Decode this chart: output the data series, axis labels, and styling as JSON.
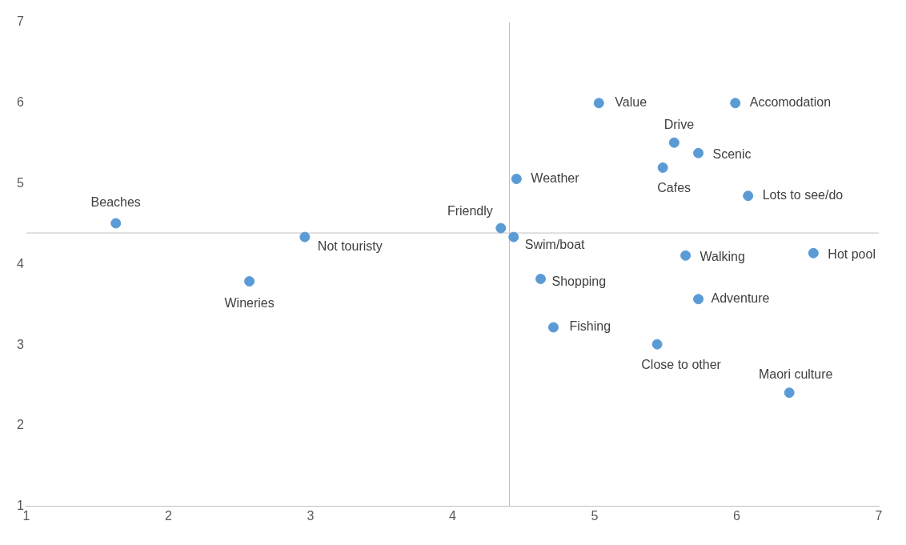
{
  "chart_data": {
    "type": "scatter",
    "x": [
      1.63,
      2.96,
      2.57,
      4.34,
      4.43,
      4.45,
      5.03,
      5.99,
      5.56,
      5.73,
      5.48,
      6.08,
      5.64,
      6.54,
      4.62,
      5.73,
      4.71,
      5.44,
      6.37
    ],
    "series": [
      {
        "color": "#5b9bd5",
        "values": [
          4.51,
          4.34,
          3.79,
          4.45,
          4.34,
          5.06,
          6.0,
          6.0,
          5.51,
          5.38,
          5.2,
          4.85,
          4.11,
          4.14,
          3.82,
          3.57,
          3.22,
          3.01,
          2.41
        ]
      }
    ],
    "annotations": [
      {
        "text": "Beaches",
        "x": 1.63,
        "y": 4.51
      },
      {
        "text": "Not touristy",
        "x": 2.96,
        "y": 4.34
      },
      {
        "text": "Wineries",
        "x": 2.57,
        "y": 3.79
      },
      {
        "text": "Friendly",
        "x": 4.34,
        "y": 4.45
      },
      {
        "text": "Swim/boat",
        "x": 4.43,
        "y": 4.34
      },
      {
        "text": "Weather",
        "x": 4.45,
        "y": 5.06
      },
      {
        "text": "Value",
        "x": 5.03,
        "y": 6.0
      },
      {
        "text": "Accomodation",
        "x": 5.99,
        "y": 6.0
      },
      {
        "text": "Drive",
        "x": 5.56,
        "y": 5.51
      },
      {
        "text": "Scenic",
        "x": 5.73,
        "y": 5.38
      },
      {
        "text": "Cafes",
        "x": 5.48,
        "y": 5.2
      },
      {
        "text": "Lots to see/do",
        "x": 6.08,
        "y": 4.85
      },
      {
        "text": "Walking",
        "x": 5.64,
        "y": 4.11
      },
      {
        "text": "Hot pool",
        "x": 6.54,
        "y": 4.14
      },
      {
        "text": "Shopping",
        "x": 4.62,
        "y": 3.82
      },
      {
        "text": "Adventure",
        "x": 5.73,
        "y": 3.57
      },
      {
        "text": "Fishing",
        "x": 4.71,
        "y": 3.22
      },
      {
        "text": "Close to other",
        "x": 5.44,
        "y": 3.01
      },
      {
        "text": "Maori culture",
        "x": 6.37,
        "y": 2.41
      }
    ],
    "ref_lines": [
      {
        "axis": "x",
        "value": 4.4,
        "color": "#bfbfbf"
      },
      {
        "axis": "y",
        "value": 4.39,
        "color": "#bfbfbf"
      }
    ],
    "xlim": [
      1,
      7
    ],
    "ylim": [
      1,
      7
    ],
    "xticks": [
      1,
      2,
      3,
      4,
      5,
      6,
      7
    ],
    "yticks": [
      1,
      2,
      3,
      4,
      5,
      6,
      7
    ],
    "grid": false,
    "legend": false,
    "marker": "circle"
  }
}
